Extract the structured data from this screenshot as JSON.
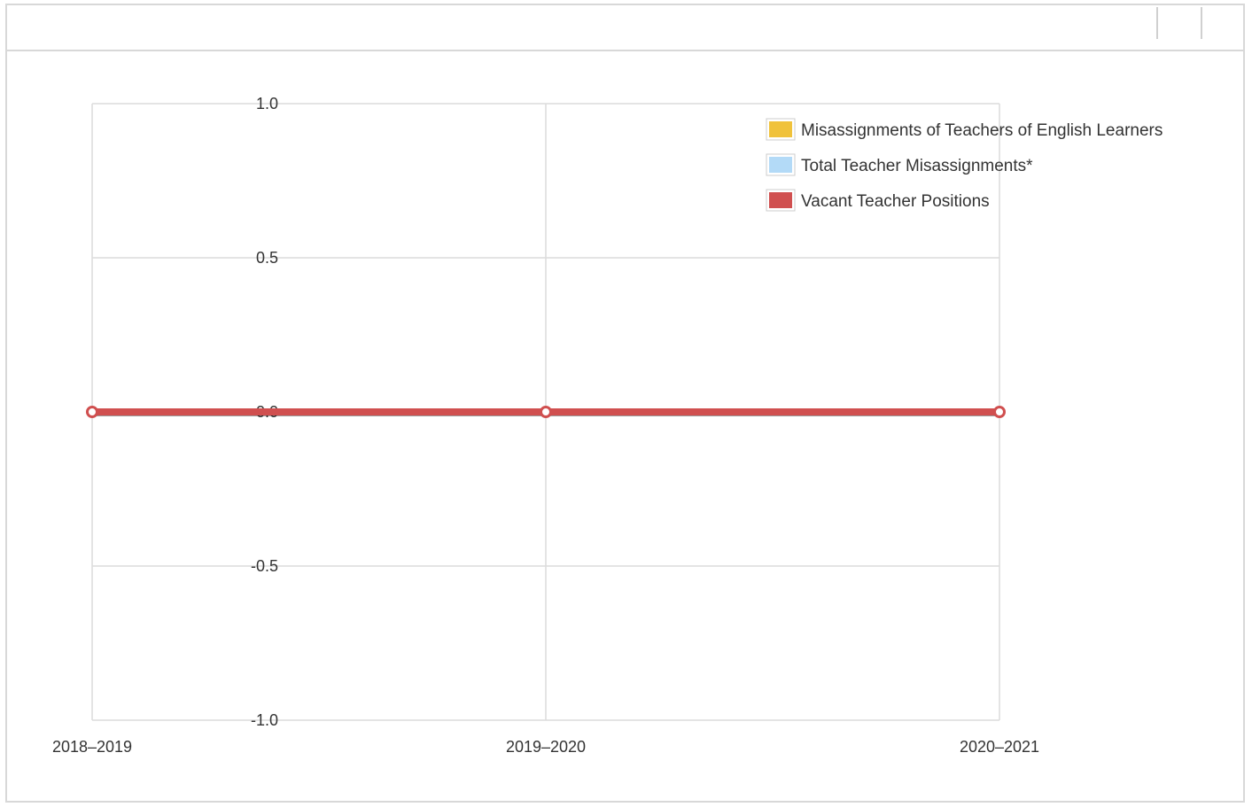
{
  "chart_data": {
    "type": "line",
    "categories": [
      "2018–2019",
      "2019–2020",
      "2020–2021"
    ],
    "series": [
      {
        "name": "Misassignments of Teachers of English Learners",
        "values": [
          0,
          0,
          0
        ],
        "color": "#f0c23b"
      },
      {
        "name": "Total Teacher Misassignments*",
        "values": [
          0,
          0,
          0
        ],
        "color": "#b3daf7"
      },
      {
        "name": "Vacant Teacher Positions",
        "values": [
          0,
          0,
          0
        ],
        "color": "#d04f4f"
      }
    ],
    "ylim": [
      -1.0,
      1.0
    ],
    "yticks": [
      "1.0",
      "0.5",
      "0.0",
      "-0.5",
      "-1.0"
    ],
    "ytick_values": [
      1.0,
      0.5,
      0.0,
      -0.5,
      -1.0
    ],
    "title": "",
    "xlabel": "",
    "ylabel": "",
    "grid": true,
    "legend_position": "top-right"
  }
}
